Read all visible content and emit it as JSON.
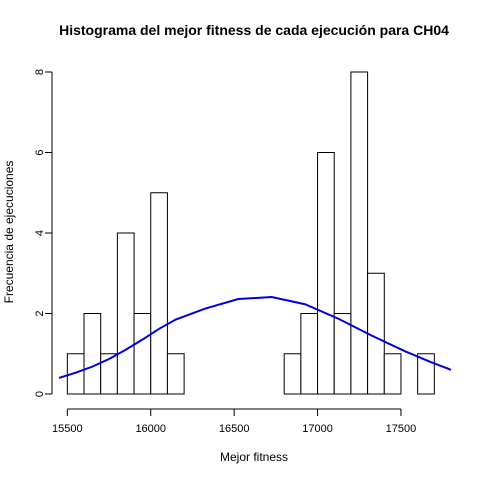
{
  "chart_data": {
    "type": "bar",
    "title": "Histograma del mejor fitness de cada ejecución para CH04",
    "xlabel": "Mejor fitness",
    "ylabel": "Frecuencia de ejecuciones",
    "xlim": [
      15450,
      17800
    ],
    "ylim": [
      0,
      8
    ],
    "x_ticks": [
      15500,
      16000,
      16500,
      17000,
      17500
    ],
    "y_ticks": [
      0,
      2,
      4,
      6,
      8
    ],
    "bins": [
      {
        "from": 15500,
        "to": 15600,
        "count": 1
      },
      {
        "from": 15600,
        "to": 15700,
        "count": 2
      },
      {
        "from": 15700,
        "to": 15800,
        "count": 1
      },
      {
        "from": 15800,
        "to": 15900,
        "count": 4
      },
      {
        "from": 15900,
        "to": 16000,
        "count": 2
      },
      {
        "from": 16000,
        "to": 16100,
        "count": 5
      },
      {
        "from": 16100,
        "to": 16200,
        "count": 1
      },
      {
        "from": 16200,
        "to": 16300,
        "count": 0
      },
      {
        "from": 16300,
        "to": 16400,
        "count": 0
      },
      {
        "from": 16400,
        "to": 16500,
        "count": 0
      },
      {
        "from": 16500,
        "to": 16600,
        "count": 0
      },
      {
        "from": 16600,
        "to": 16700,
        "count": 0
      },
      {
        "from": 16700,
        "to": 16800,
        "count": 0
      },
      {
        "from": 16800,
        "to": 16900,
        "count": 1
      },
      {
        "from": 16900,
        "to": 17000,
        "count": 2
      },
      {
        "from": 17000,
        "to": 17100,
        "count": 6
      },
      {
        "from": 17100,
        "to": 17200,
        "count": 2
      },
      {
        "from": 17200,
        "to": 17300,
        "count": 8
      },
      {
        "from": 17300,
        "to": 17400,
        "count": 3
      },
      {
        "from": 17400,
        "to": 17500,
        "count": 1
      },
      {
        "from": 17500,
        "to": 17600,
        "count": 0
      },
      {
        "from": 17600,
        "to": 17700,
        "count": 1
      }
    ],
    "curve": {
      "color": "#0000dd",
      "x": [
        15450,
        15550,
        15650,
        15750,
        15850,
        15950,
        16050,
        16150,
        16325,
        16525,
        16725,
        16925,
        17125,
        17325,
        17525,
        17675,
        17800
      ],
      "y": [
        0.4,
        0.53,
        0.68,
        0.87,
        1.1,
        1.35,
        1.62,
        1.85,
        2.12,
        2.36,
        2.41,
        2.23,
        1.87,
        1.45,
        1.06,
        0.8,
        0.6
      ]
    },
    "grid": false,
    "bar_fill": "#ffffff",
    "bar_stroke": "#000000"
  }
}
